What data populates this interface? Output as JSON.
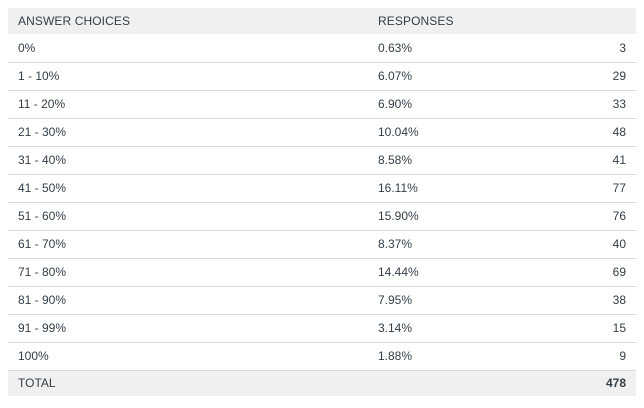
{
  "table": {
    "headers": {
      "choices": "ANSWER CHOICES",
      "responses": "RESPONSES"
    },
    "rows": [
      {
        "choice": "0%",
        "percent": "0.63%",
        "count": "3"
      },
      {
        "choice": "1 - 10%",
        "percent": "6.07%",
        "count": "29"
      },
      {
        "choice": "11 - 20%",
        "percent": "6.90%",
        "count": "33"
      },
      {
        "choice": "21 - 30%",
        "percent": "10.04%",
        "count": "48"
      },
      {
        "choice": "31 - 40%",
        "percent": "8.58%",
        "count": "41"
      },
      {
        "choice": "41 - 50%",
        "percent": "16.11%",
        "count": "77"
      },
      {
        "choice": "51 - 60%",
        "percent": "15.90%",
        "count": "76"
      },
      {
        "choice": "61 - 70%",
        "percent": "8.37%",
        "count": "40"
      },
      {
        "choice": "71 - 80%",
        "percent": "14.44%",
        "count": "69"
      },
      {
        "choice": "81 - 90%",
        "percent": "7.95%",
        "count": "38"
      },
      {
        "choice": "91 - 99%",
        "percent": "3.14%",
        "count": "15"
      },
      {
        "choice": "100%",
        "percent": "1.88%",
        "count": "9"
      }
    ],
    "total": {
      "label": "TOTAL",
      "count": "478"
    }
  },
  "colors": {
    "header_background": "#f0f0f0",
    "row_divider": "#d9d9d9",
    "text": "#333e48"
  }
}
